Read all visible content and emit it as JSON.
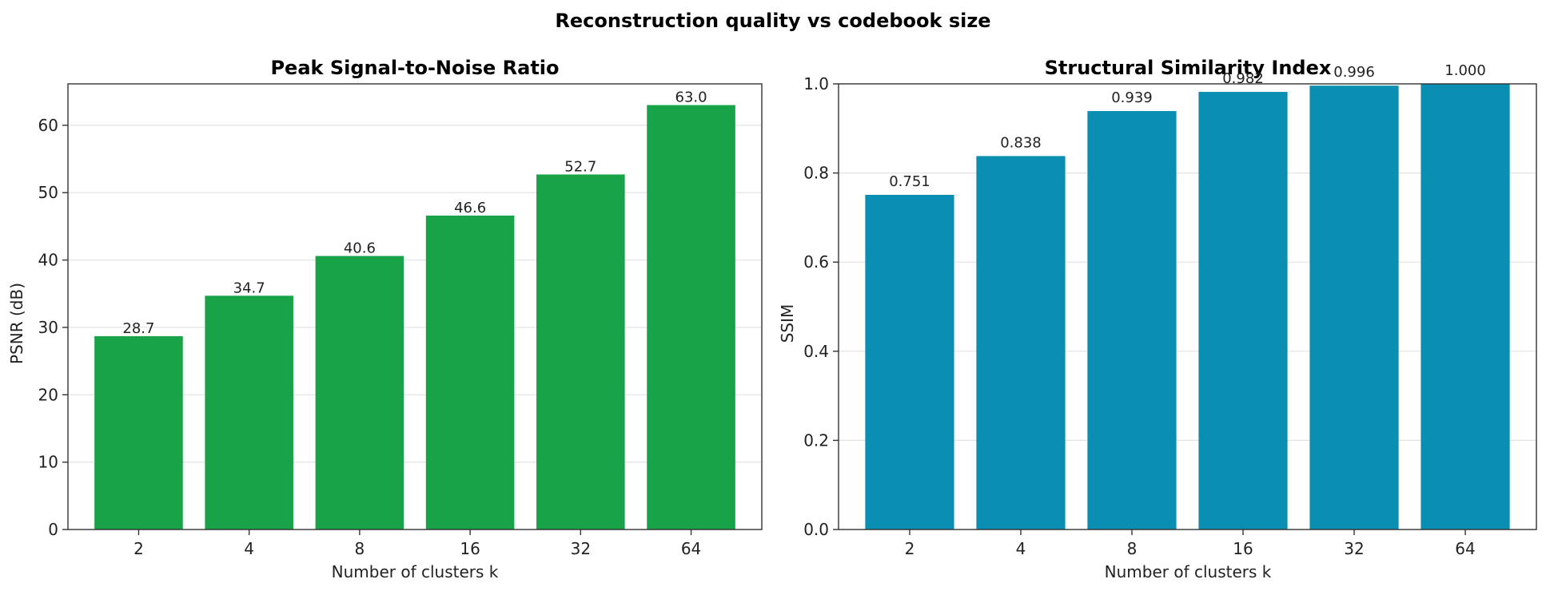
{
  "figure": {
    "title": "Reconstruction quality vs codebook size"
  },
  "chart_data": [
    {
      "type": "bar",
      "title": "Peak Signal-to-Noise Ratio",
      "xlabel": "Number of clusters  k",
      "ylabel": "PSNR (dB)",
      "categories": [
        "2",
        "4",
        "8",
        "16",
        "32",
        "64"
      ],
      "values": [
        28.7,
        34.7,
        40.6,
        46.6,
        52.7,
        63.0
      ],
      "value_labels": [
        "28.7",
        "34.7",
        "40.6",
        "46.6",
        "52.7",
        "63.0"
      ],
      "ylim": [
        0,
        66.15
      ],
      "yticks": [
        0,
        10,
        20,
        30,
        40,
        50,
        60
      ],
      "ytick_labels": [
        "0",
        "10",
        "20",
        "30",
        "40",
        "50",
        "60"
      ],
      "grid": "y",
      "color": "#18a348"
    },
    {
      "type": "bar",
      "title": "Structural Similarity Index",
      "xlabel": "Number of clusters  k",
      "ylabel": "SSIM",
      "categories": [
        "2",
        "4",
        "8",
        "16",
        "32",
        "64"
      ],
      "values": [
        0.751,
        0.838,
        0.939,
        0.982,
        0.996,
        1.0
      ],
      "value_labels": [
        "0.751",
        "0.838",
        "0.939",
        "0.982",
        "0.996",
        "1.000"
      ],
      "ylim": [
        0,
        1.0
      ],
      "yticks": [
        0,
        0.2,
        0.4,
        0.6,
        0.8,
        1.0
      ],
      "ytick_labels": [
        "0.0",
        "0.2",
        "0.4",
        "0.6",
        "0.8",
        "1.0"
      ],
      "grid": "y",
      "color": "#0a8fb3"
    }
  ]
}
